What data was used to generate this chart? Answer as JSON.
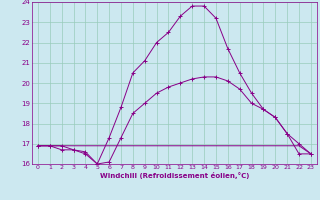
{
  "xlabel": "Windchill (Refroidissement éolien,°C)",
  "bg_color": "#cce8f0",
  "line_color": "#880088",
  "grid_color": "#99ccbb",
  "xlim": [
    -0.5,
    23.5
  ],
  "ylim": [
    16,
    24
  ],
  "yticks": [
    16,
    17,
    18,
    19,
    20,
    21,
    22,
    23,
    24
  ],
  "xticks": [
    0,
    1,
    2,
    3,
    4,
    5,
    6,
    7,
    8,
    9,
    10,
    11,
    12,
    13,
    14,
    15,
    16,
    17,
    18,
    19,
    20,
    21,
    22,
    23
  ],
  "line1_x": [
    0,
    1,
    2,
    3,
    4,
    5,
    6,
    7,
    8,
    9,
    10,
    11,
    12,
    13,
    14,
    15,
    16,
    17,
    18,
    19,
    20,
    21,
    22,
    23
  ],
  "line1_y": [
    16.9,
    16.9,
    16.9,
    16.9,
    16.9,
    16.9,
    16.9,
    16.9,
    16.9,
    16.9,
    16.9,
    16.9,
    16.9,
    16.9,
    16.9,
    16.9,
    16.9,
    16.9,
    16.9,
    16.9,
    16.9,
    16.9,
    16.9,
    16.5
  ],
  "line2_x": [
    0,
    1,
    2,
    3,
    4,
    5,
    6,
    7,
    8,
    9,
    10,
    11,
    12,
    13,
    14,
    15,
    16,
    17,
    18,
    19,
    20,
    21,
    22,
    23
  ],
  "line2_y": [
    16.9,
    16.9,
    16.7,
    16.7,
    16.5,
    16.0,
    16.1,
    17.3,
    18.5,
    19.0,
    19.5,
    19.8,
    20.0,
    20.2,
    20.3,
    20.3,
    20.1,
    19.7,
    19.0,
    18.7,
    18.3,
    17.5,
    16.5,
    16.5
  ],
  "line3_x": [
    0,
    1,
    2,
    3,
    4,
    5,
    6,
    7,
    8,
    9,
    10,
    11,
    12,
    13,
    14,
    15,
    16,
    17,
    18,
    19,
    20,
    21,
    22,
    23
  ],
  "line3_y": [
    16.9,
    16.9,
    16.9,
    16.7,
    16.6,
    16.0,
    17.3,
    18.8,
    20.5,
    21.1,
    22.0,
    22.5,
    23.3,
    23.8,
    23.8,
    23.2,
    21.7,
    20.5,
    19.5,
    18.7,
    18.3,
    17.5,
    17.0,
    16.5
  ]
}
